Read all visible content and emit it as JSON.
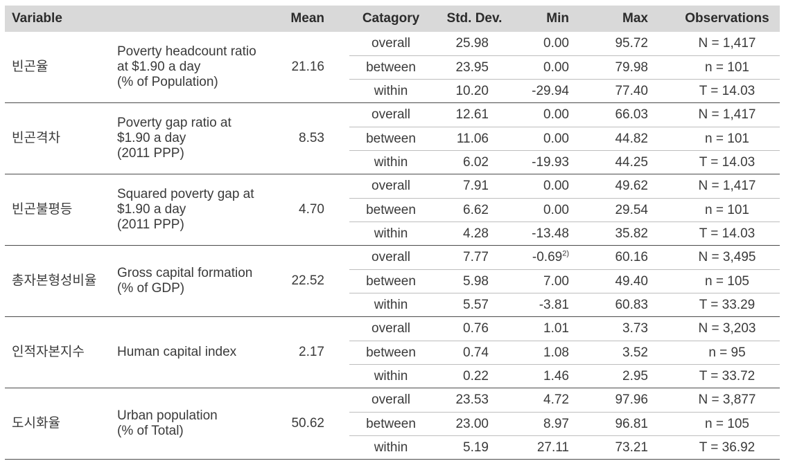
{
  "headers": {
    "variable": "Variable",
    "mean": "Mean",
    "category": "Catagory",
    "std_dev": "Std. Dev.",
    "min": "Min",
    "max": "Max",
    "observations": "Observations"
  },
  "rows": [
    {
      "korean": "빈곤율",
      "desc": [
        "Poverty headcount ratio",
        "at $1.90 a day",
        "(% of Population)"
      ],
      "mean": "21.16",
      "sub": [
        {
          "cat": "overall",
          "std": "25.98",
          "min": "0.00",
          "min_note": "",
          "max": "95.72",
          "obs": "N = 1,417"
        },
        {
          "cat": "between",
          "std": "23.95",
          "min": "0.00",
          "min_note": "",
          "max": "79.98",
          "obs": "n = 101"
        },
        {
          "cat": "within",
          "std": "10.20",
          "min": "-29.94",
          "min_note": "",
          "max": "77.40",
          "obs": "T = 14.03"
        }
      ]
    },
    {
      "korean": "빈곤격차",
      "desc": [
        "Poverty gap ratio at",
        "$1.90 a day",
        "(2011 PPP)"
      ],
      "mean": "8.53",
      "sub": [
        {
          "cat": "overall",
          "std": "12.61",
          "min": "0.00",
          "min_note": "",
          "max": "66.03",
          "obs": "N = 1,417"
        },
        {
          "cat": "between",
          "std": "11.06",
          "min": "0.00",
          "min_note": "",
          "max": "44.82",
          "obs": "n = 101"
        },
        {
          "cat": "within",
          "std": "6.02",
          "min": "-19.93",
          "min_note": "",
          "max": "44.25",
          "obs": "T = 14.03"
        }
      ]
    },
    {
      "korean": "빈곤불평등",
      "desc": [
        "Squared poverty gap at",
        "$1.90 a day",
        "(2011 PPP)"
      ],
      "mean": "4.70",
      "sub": [
        {
          "cat": "overall",
          "std": "7.91",
          "min": "0.00",
          "min_note": "",
          "max": "49.62",
          "obs": "N = 1,417"
        },
        {
          "cat": "between",
          "std": "6.62",
          "min": "0.00",
          "min_note": "",
          "max": "29.54",
          "obs": "n = 101"
        },
        {
          "cat": "within",
          "std": "4.28",
          "min": "-13.48",
          "min_note": "",
          "max": "35.82",
          "obs": "T = 14.03"
        }
      ]
    },
    {
      "korean": "총자본형성비율",
      "desc": [
        "Gross capital formation",
        "(% of GDP)"
      ],
      "mean": "22.52",
      "sub": [
        {
          "cat": "overall",
          "std": "7.77",
          "min": "-0.69",
          "min_note": "2)",
          "max": "60.16",
          "obs": "N = 3,495"
        },
        {
          "cat": "between",
          "std": "5.98",
          "min": "7.00",
          "min_note": "",
          "max": "49.40",
          "obs": "n = 105"
        },
        {
          "cat": "within",
          "std": "5.57",
          "min": "-3.81",
          "min_note": "",
          "max": "60.83",
          "obs": "T = 33.29"
        }
      ]
    },
    {
      "korean": "인적자본지수",
      "desc": [
        "Human capital index"
      ],
      "mean": "2.17",
      "sub": [
        {
          "cat": "overall",
          "std": "0.76",
          "min": "1.01",
          "min_note": "",
          "max": "3.73",
          "obs": "N = 3,203"
        },
        {
          "cat": "between",
          "std": "0.74",
          "min": "1.08",
          "min_note": "",
          "max": "3.52",
          "obs": "n = 95"
        },
        {
          "cat": "within",
          "std": "0.22",
          "min": "1.46",
          "min_note": "",
          "max": "2.95",
          "obs": "T = 33.72"
        }
      ]
    },
    {
      "korean": "도시화율",
      "desc": [
        "Urban population",
        "(% of Total)"
      ],
      "mean": "50.62",
      "sub": [
        {
          "cat": "overall",
          "std": "23.53",
          "min": "4.72",
          "min_note": "",
          "max": "97.96",
          "obs": "N = 3,877"
        },
        {
          "cat": "between",
          "std": "23.00",
          "min": "8.97",
          "min_note": "",
          "max": "96.81",
          "obs": "n = 105"
        },
        {
          "cat": "within",
          "std": "5.19",
          "min": "27.11",
          "min_note": "",
          "max": "73.21",
          "obs": "T = 36.92"
        }
      ]
    }
  ]
}
